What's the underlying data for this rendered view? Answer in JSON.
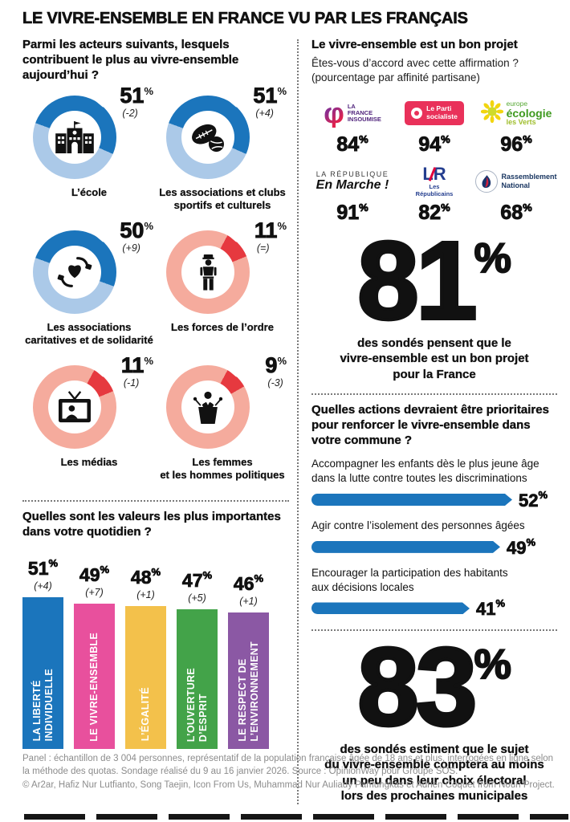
{
  "percent_sign": "%",
  "title": "LE VIVRE-ENSEMBLE EN FRANCE VU PAR LES FRANÇAIS",
  "palette": {
    "blue": {
      "main": "#1b75bc",
      "rest": "#abc9e8"
    },
    "red": {
      "main": "#e6393f",
      "rest": "#f5ab9d"
    }
  },
  "left": {
    "actors_question": "Parmi les acteurs suivants, lesquels contribuent le plus au vivre-ensemble aujourd’hui ?",
    "actors": [
      {
        "label": "L’école",
        "value": 51,
        "delta": "(-2)",
        "scheme": "blue",
        "icon": "school"
      },
      {
        "label": "Les associations et clubs\nsportifs et culturels",
        "value": 51,
        "delta": "(+4)",
        "scheme": "blue",
        "icon": "sports-balls"
      },
      {
        "label": "Les associations\ncaritatives et de solidarité",
        "value": 50,
        "delta": "(+9)",
        "scheme": "blue",
        "icon": "heart-in-hands"
      },
      {
        "label": "Les forces de l’ordre",
        "value": 11,
        "delta": "(=)",
        "scheme": "red",
        "icon": "police-officer"
      },
      {
        "label": "Les médias",
        "value": 11,
        "delta": "(-1)",
        "scheme": "red",
        "icon": "television"
      },
      {
        "label": "Les femmes\net les hommes politiques",
        "value": 9,
        "delta": "(-3)",
        "scheme": "red",
        "icon": "politician-podium"
      }
    ],
    "values_question": "Quelles sont les valeurs les plus importantes dans votre quotidien ?",
    "values": [
      {
        "label": "LA LIBERTÉ\nINDIVIDUELLE",
        "value": 51,
        "delta": "(+4)",
        "color": "#1b75bc"
      },
      {
        "label": "LE VIVRE-ENSEMBLE",
        "value": 49,
        "delta": "(+7)",
        "color": "#e8509d"
      },
      {
        "label": "L’ÉGALITÉ",
        "value": 48,
        "delta": "(+1)",
        "color": "#f3c14b"
      },
      {
        "label": "L’OUVERTURE\nD’ESPRIT",
        "value": 47,
        "delta": "(+5)",
        "color": "#43a349"
      },
      {
        "label": "LE RESPECT DE\nL’ENVIRONNEMENT",
        "value": 46,
        "delta": "(+1)",
        "color": "#8b58a4"
      }
    ]
  },
  "right": {
    "project_question": "Le vivre-ensemble est un bon projet",
    "project_sub1": "Êtes-vous d’accord avec cette affirmation ?",
    "project_sub2": "(pourcentage par affinité partisane)",
    "parties": [
      {
        "name": "La France Insoumise",
        "value": 84,
        "logo": {
          "text": "LA\nFRANCE\nINSOUMISE",
          "symbol": "φ"
        }
      },
      {
        "name": "Le Parti socialiste",
        "value": 94,
        "logo": {
          "text": "Le Parti\nsocialiste"
        }
      },
      {
        "name": "Europe Écologie Les Verts",
        "value": 96,
        "logo": {
          "top": "europe",
          "mid": "écologie",
          "bot": "les Verts"
        }
      },
      {
        "name": "La République En Marche !",
        "value": 91,
        "logo": {
          "top": "LA RÉPUBLIQUE",
          "bot": "En Marche !"
        }
      },
      {
        "name": "Les Républicains",
        "value": 82,
        "logo": {
          "mark": "LR",
          "sub": "Les\nRépublicains"
        }
      },
      {
        "name": "Rassemblement National",
        "value": 68,
        "logo": {
          "text": "Rassemblement\nNational"
        }
      }
    ],
    "big1": {
      "value": 81,
      "caption": "des sondés pensent que le\nvivre-ensemble est un bon projet\npour la France"
    },
    "actions_question": "Quelles actions devraient être prioritaires pour renforcer le vivre-ensemble dans votre commune ?",
    "actions": [
      {
        "label": "Accompagner les enfants dès le plus jeune âge\ndans la lutte contre toutes les discriminations",
        "value": 52
      },
      {
        "label": "Agir contre l’isolement des personnes âgées",
        "value": 49
      },
      {
        "label": "Encourager la participation des habitants\naux décisions locales",
        "value": 41
      }
    ],
    "big2": {
      "value": 83,
      "caption": "des sondés estiment que le sujet\ndu vivre-ensemble comptera au moins\nun peu dans leur choix électoral\nlors des prochaines municipales"
    }
  },
  "footer": {
    "line1": "Panel : échantillon de 3 004 personnes, représentatif de la population française âgée de 18 ans et plus, interrogées en ligne selon la méthode des quotas. Sondage réalisé du 9 au 16 janvier 2026. Source : OpinionWay pour Groupe SOS.",
    "line2": "© Ar2ar, Hafiz Nur Lutfianto, Song Taejin, Icon From Us, Muhammad Nur Auliady Pamungkas et Adrien Coquet from Noun Project."
  },
  "chart_data": [
    {
      "type": "pie",
      "variant": "donut-grid",
      "title": "Parmi les acteurs suivants, lesquels contribuent le plus au vivre-ensemble aujourd’hui ?",
      "categories": [
        "L’école",
        "Les associations et clubs sportifs et culturels",
        "Les associations caritatives et de solidarité",
        "Les forces de l’ordre",
        "Les médias",
        "Les femmes et les hommes politiques"
      ],
      "values": [
        51,
        51,
        50,
        11,
        11,
        9
      ],
      "deltas": [
        "-2",
        "+4",
        "+9",
        "=",
        "-1",
        "-3"
      ],
      "unit": "%",
      "colors": {
        "high": "#1b75bc",
        "low": "#e6393f"
      }
    },
    {
      "type": "bar",
      "orientation": "vertical",
      "title": "Quelles sont les valeurs les plus importantes dans votre quotidien ?",
      "categories": [
        "La liberté individuelle",
        "Le vivre-ensemble",
        "L’égalité",
        "L’ouverture d’esprit",
        "Le respect de l’environnement"
      ],
      "values": [
        51,
        49,
        48,
        47,
        46
      ],
      "deltas": [
        "+4",
        "+7",
        "+1",
        "+5",
        "+1"
      ],
      "unit": "%",
      "colors": [
        "#1b75bc",
        "#e8509d",
        "#f3c14b",
        "#43a349",
        "#8b58a4"
      ]
    },
    {
      "type": "bar",
      "variant": "pictorial-party-logos",
      "title": "Le vivre-ensemble est un bon projet — Êtes-vous d’accord avec cette affirmation ? (pourcentage par affinité partisane)",
      "categories": [
        "La France Insoumise",
        "Le Parti socialiste",
        "Europe Écologie Les Verts",
        "La République En Marche !",
        "Les Républicains",
        "Rassemblement National"
      ],
      "values": [
        84,
        94,
        96,
        91,
        82,
        68
      ],
      "unit": "%",
      "annotation": "81% des sondés pensent que le vivre-ensemble est un bon projet pour la France"
    },
    {
      "type": "bar",
      "orientation": "horizontal",
      "title": "Quelles actions devraient être prioritaires pour renforcer le vivre-ensemble dans votre commune ?",
      "categories": [
        "Accompagner les enfants dès le plus jeune âge dans la lutte contre toutes les discriminations",
        "Agir contre l’isolement des personnes âgées",
        "Encourager la participation des habitants aux décisions locales"
      ],
      "values": [
        52,
        49,
        41
      ],
      "unit": "%",
      "color": "#1b75bc",
      "annotation": "83% des sondés estiment que le sujet du vivre-ensemble comptera au moins un peu dans leur choix électoral lors des prochaines municipales"
    }
  ]
}
